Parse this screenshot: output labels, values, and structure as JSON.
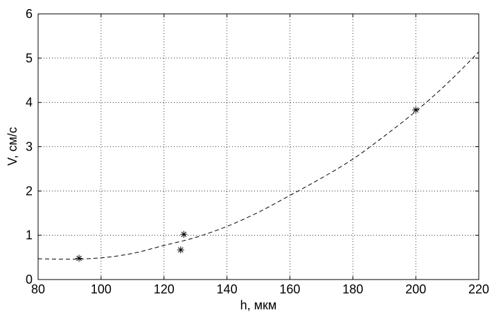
{
  "chart_data": {
    "type": "scatter",
    "xlabel": "h, мкм",
    "ylabel": "V, см/с",
    "xlim": [
      80,
      220
    ],
    "ylim": [
      0,
      6
    ],
    "xticks": [
      "80",
      "100",
      "120",
      "140",
      "160",
      "180",
      "200",
      "220"
    ],
    "yticks": [
      "0",
      "1",
      "2",
      "3",
      "4",
      "5",
      "6"
    ],
    "grid": true,
    "series": [
      {
        "kind": "points",
        "marker": "asterisk",
        "points": [
          {
            "x": 93,
            "y": 0.48
          },
          {
            "x": 125.3,
            "y": 0.67
          },
          {
            "x": 126.3,
            "y": 1.02
          },
          {
            "x": 200,
            "y": 3.83
          }
        ]
      },
      {
        "kind": "fit-curve",
        "style": "dashed",
        "points": [
          {
            "x": 80,
            "y": 0.47
          },
          {
            "x": 90,
            "y": 0.46
          },
          {
            "x": 100,
            "y": 0.49
          },
          {
            "x": 110,
            "y": 0.59
          },
          {
            "x": 120,
            "y": 0.77
          },
          {
            "x": 130,
            "y": 0.95
          },
          {
            "x": 140,
            "y": 1.2
          },
          {
            "x": 150,
            "y": 1.52
          },
          {
            "x": 160,
            "y": 1.9
          },
          {
            "x": 170,
            "y": 2.29
          },
          {
            "x": 180,
            "y": 2.72
          },
          {
            "x": 190,
            "y": 3.24
          },
          {
            "x": 200,
            "y": 3.8
          },
          {
            "x": 210,
            "y": 4.43
          },
          {
            "x": 220,
            "y": 5.14
          }
        ]
      }
    ]
  }
}
